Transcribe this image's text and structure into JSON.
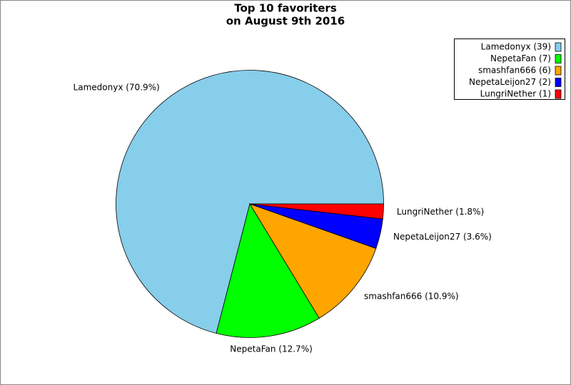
{
  "chart_data": {
    "type": "pie",
    "title": "Top 10 favoriters",
    "subtitle": "on August 9th 2016",
    "values": [
      70.9,
      12.7,
      10.9,
      3.6,
      1.8
    ],
    "value_labels": [
      "Lamedonyx (70.9%)",
      "NepetaFan (12.7%)",
      "smashfan666 (10.9%)",
      "NepetaLeijon27 (3.6%)",
      "LungriNether (1.8%)"
    ],
    "legend_labels": [
      "Lamedonyx (39)",
      "NepetaFan (7)",
      "smashfan666 (6)",
      "NepetaLeijon27 (2)",
      "LungriNether (1)"
    ],
    "colors": [
      "#87ceeb",
      "#00ff00",
      "#ffa500",
      "#0000ff",
      "#ff0000"
    ],
    "legend_position": "upper right"
  }
}
